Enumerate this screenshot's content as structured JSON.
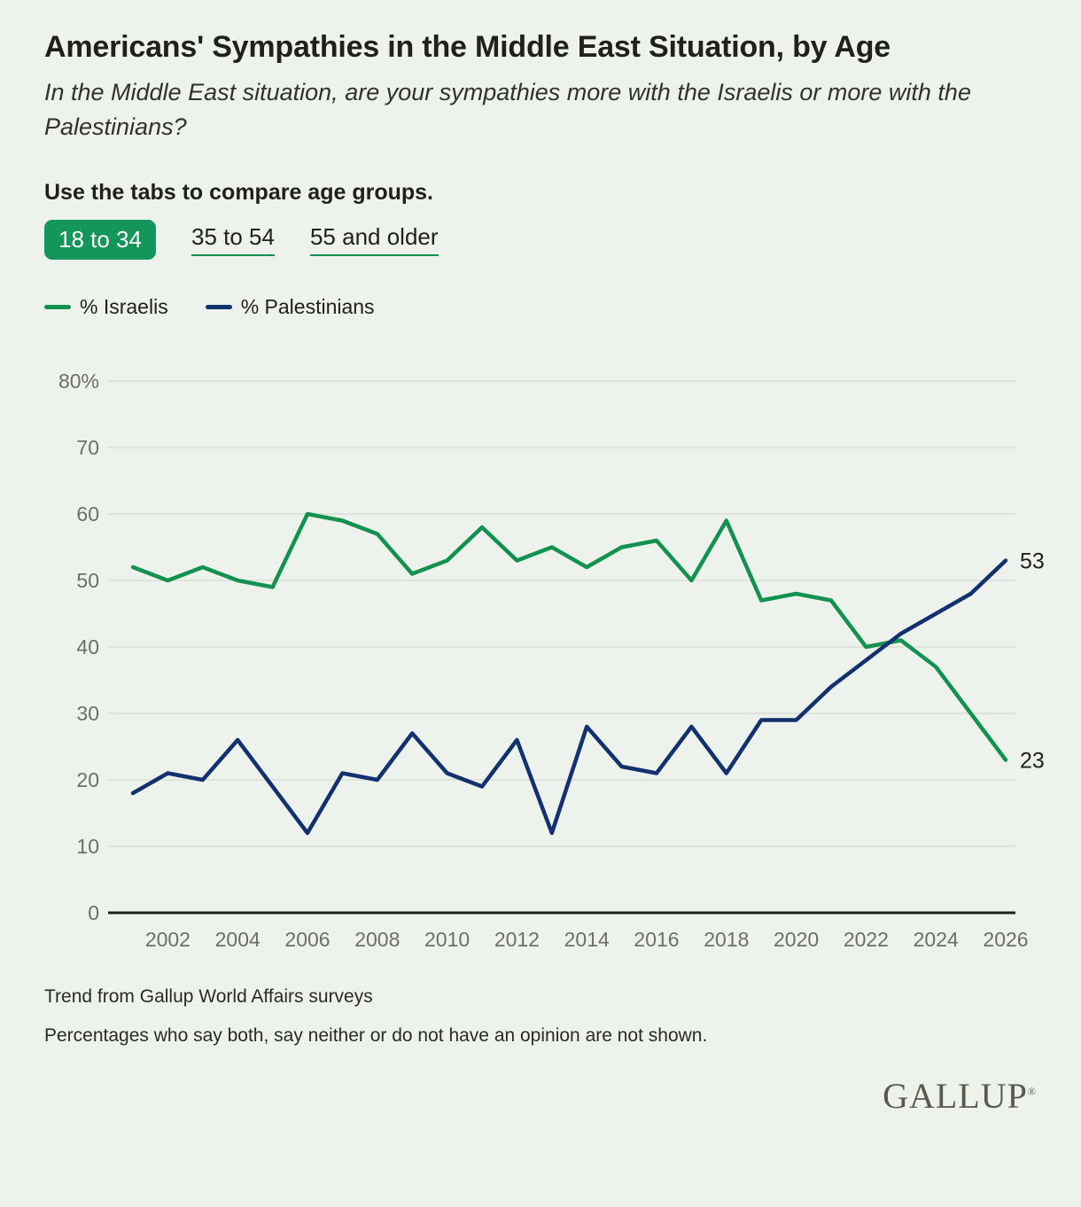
{
  "header": {
    "title": "Americans' Sympathies in the Middle East Situation, by Age",
    "subtitle": "In the Middle East situation, are your sympathies more with the Israelis or more with the Palestinians?"
  },
  "tabs": {
    "heading": "Use the tabs to compare age groups.",
    "items": [
      {
        "label": "18 to 34",
        "selected": true
      },
      {
        "label": "35 to 54",
        "selected": false
      },
      {
        "label": "55 and older",
        "selected": false
      }
    ]
  },
  "legend": {
    "items": [
      "% Israelis",
      "% Palestinians"
    ]
  },
  "chart_data": {
    "type": "line",
    "x": [
      2001,
      2002,
      2003,
      2004,
      2005,
      2006,
      2007,
      2008,
      2009,
      2010,
      2011,
      2012,
      2013,
      2014,
      2015,
      2016,
      2017,
      2018,
      2019,
      2020,
      2021,
      2022,
      2023,
      2024,
      2025,
      2026
    ],
    "series": [
      {
        "name": "% Israelis",
        "color": "#12914f",
        "end_label": "23",
        "values": [
          52,
          50,
          52,
          50,
          49,
          60,
          59,
          57,
          51,
          53,
          58,
          53,
          55,
          52,
          55,
          56,
          50,
          59,
          47,
          48,
          47,
          40,
          41,
          37,
          30,
          23
        ]
      },
      {
        "name": "% Palestinians",
        "color": "#14316f",
        "end_label": "53",
        "values": [
          18,
          21,
          20,
          26,
          19,
          12,
          21,
          20,
          27,
          21,
          19,
          26,
          12,
          28,
          22,
          21,
          28,
          21,
          29,
          29,
          34,
          38,
          42,
          45,
          48,
          53
        ]
      }
    ],
    "y_ticks": [
      {
        "value": 80,
        "label": "80%"
      },
      {
        "value": 70,
        "label": "70"
      },
      {
        "value": 60,
        "label": "60"
      },
      {
        "value": 50,
        "label": "50"
      },
      {
        "value": 40,
        "label": "40"
      },
      {
        "value": 30,
        "label": "30"
      },
      {
        "value": 20,
        "label": "20"
      },
      {
        "value": 10,
        "label": "10"
      },
      {
        "value": 0,
        "label": "0"
      }
    ],
    "x_tick_labels": [
      "2002",
      "2004",
      "2006",
      "2008",
      "2010",
      "2012",
      "2014",
      "2016",
      "2018",
      "2020",
      "2022",
      "2024",
      "2026"
    ],
    "ylim": [
      0,
      80
    ],
    "grid": true,
    "legend_position": "top-left"
  },
  "footer": {
    "source": "Trend from Gallup World Affairs surveys",
    "note": "Percentages who say both, say neither or do not have an opinion are not shown.",
    "brand": "GALLUP",
    "brand_mark": "®"
  },
  "colors": {
    "background": "#edf3ec",
    "israelis_green": "#12914f",
    "palestinians_navy": "#14316f",
    "tab_selected_bg": "#14955a",
    "tab_underline": "#12914f",
    "grid_line": "#d9ded5",
    "axis_line": "#21211c",
    "axis_text": "#6e6e68"
  }
}
